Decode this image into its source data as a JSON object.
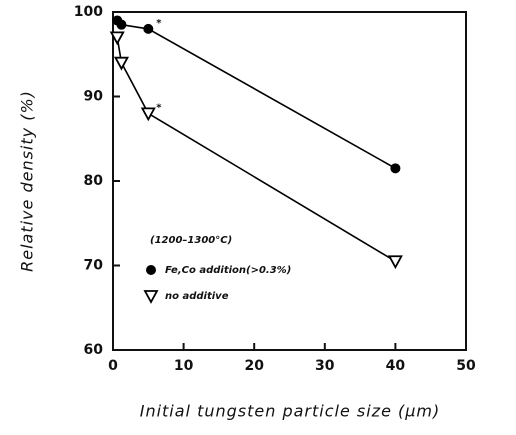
{
  "chart_data": {
    "type": "line",
    "x_label": "Initial tungsten particle size (μm)",
    "y_label": "Relative density (%)",
    "legend_title": "(1200–1300°C)",
    "annotations": [
      "*",
      "*"
    ],
    "series": [
      {
        "name": "Fe,Co addition(>0.3%)",
        "color": "#000000",
        "marker": "circle",
        "x": [
          0.6,
          1.2,
          5,
          40
        ],
        "values": [
          99,
          98.5,
          98,
          81.5
        ]
      },
      {
        "name": "no additive",
        "color": "#000000",
        "marker": "triangle-down",
        "x": [
          0.6,
          1.2,
          5,
          40
        ],
        "values": [
          97,
          94,
          88,
          70.5
        ]
      }
    ],
    "xlim": [
      0,
      50
    ],
    "xticks": [
      0,
      10,
      20,
      30,
      40,
      50
    ],
    "ylim": [
      60,
      100
    ],
    "yticks": [
      60,
      70,
      80,
      90,
      100
    ],
    "grid": false
  }
}
